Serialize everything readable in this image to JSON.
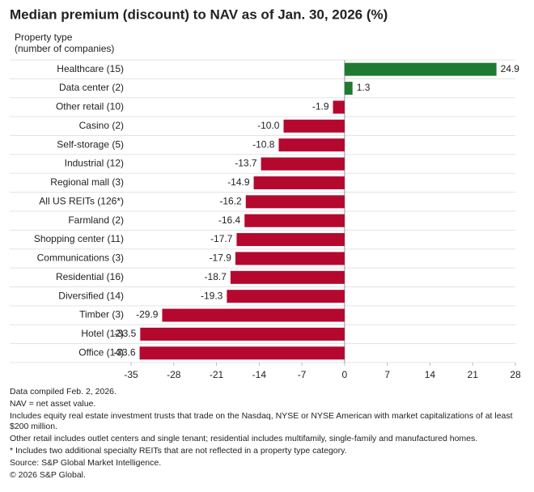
{
  "chart_data": {
    "type": "barh",
    "title": "Median premium (discount) to NAV as of Jan. 30, 2026 (%)",
    "y_axis_label": [
      "Property type",
      "(number of companies)"
    ],
    "categories": [
      "Healthcare (15)",
      "Data center (2)",
      "Other retail (10)",
      "Casino (2)",
      "Self-storage (5)",
      "Industrial (12)",
      "Regional mall (3)",
      "All US REITs (126*)",
      "Farmland (2)",
      "Shopping center (11)",
      "Communications (3)",
      "Residential (16)",
      "Diversified (14)",
      "Timber (3)",
      "Hotel (12)",
      "Office (14)"
    ],
    "values": [
      24.9,
      1.3,
      -1.9,
      -10.0,
      -10.8,
      -13.7,
      -14.9,
      -16.2,
      -16.4,
      -17.7,
      -17.9,
      -18.7,
      -19.3,
      -29.9,
      -33.5,
      -33.6
    ],
    "value_labels": [
      "24.9",
      "1.3",
      "-1.9",
      "-10.0",
      "-10.8",
      "-13.7",
      "-14.9",
      "-16.2",
      "-16.4",
      "-17.7",
      "-17.9",
      "-18.7",
      "-19.3",
      "-29.9",
      "-33.5",
      "-33.6"
    ],
    "color_positive": "#1f7a34",
    "color_negative": "#b5082e",
    "xlim": [
      -35,
      28
    ],
    "xticks": [
      -35,
      -28,
      -21,
      -14,
      -7,
      0,
      7,
      14,
      21,
      28
    ],
    "notes": [
      "Data compiled Feb. 2, 2026.",
      "NAV = net asset value.",
      "Includes equity real estate investment trusts that trade on the Nasdaq, NYSE or NYSE American with market capitalizations of at least $200 million.",
      "Other retail includes outlet centers and single tenant; residential includes multifamily, single-family and manufactured homes.",
      "* Includes two additional specialty REITs that are not reflected in a property type category.",
      "Source: S&P Global Market Intelligence.",
      "© 2026 S&P Global."
    ]
  }
}
